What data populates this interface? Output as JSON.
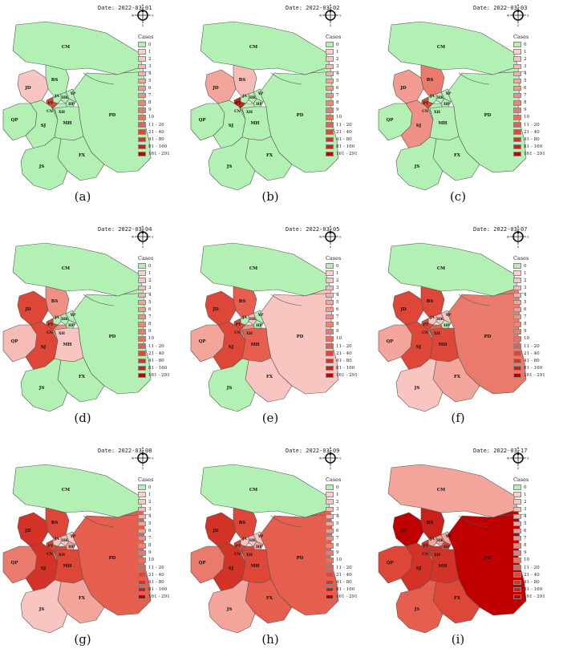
{
  "legend": {
    "title": "Cases",
    "items": [
      {
        "label": "0",
        "color": "#b2f0b4"
      },
      {
        "label": "1",
        "color": "#fbd0cd"
      },
      {
        "label": "2",
        "color": "#f8c5c0"
      },
      {
        "label": "3",
        "color": "#f7bbb5"
      },
      {
        "label": "4",
        "color": "#f5b0a9"
      },
      {
        "label": "5",
        "color": "#f3a59c"
      },
      {
        "label": "6",
        "color": "#f19b91"
      },
      {
        "label": "7",
        "color": "#ef9085"
      },
      {
        "label": "8",
        "color": "#ec8577"
      },
      {
        "label": "9",
        "color": "#ea7b6c"
      },
      {
        "label": "10",
        "color": "#e87060"
      },
      {
        "label": "11 - 20",
        "color": "#e55e4e"
      },
      {
        "label": "21 - 40",
        "color": "#de4638"
      },
      {
        "label": "41 - 80",
        "color": "#d33326"
      },
      {
        "label": "81 - 160",
        "color": "#c9201a"
      },
      {
        "label": "161 - 291",
        "color": "#c00000"
      }
    ]
  },
  "compass": {
    "n": "N",
    "s": "S",
    "e": "E",
    "w": "W"
  },
  "districts": [
    "CM",
    "BS",
    "JD",
    "YP",
    "HK",
    "JA",
    "PT",
    "HP",
    "CN",
    "XH",
    "QP",
    "SJ",
    "MH",
    "PD",
    "FX",
    "JS"
  ],
  "panels": [
    {
      "caption": "(a)",
      "date_label": "Date: 2022-03-01",
      "colors": {
        "CM": "#b2f0b4",
        "BS": "#b2f0b4",
        "JD": "#f8c5c0",
        "YP": "#b2f0b4",
        "HK": "#b2f0b4",
        "JA": "#b2f0b4",
        "PT": "#de4638",
        "HP": "#b2f0b4",
        "CN": "#b2f0b4",
        "XH": "#b2f0b4",
        "QP": "#b2f0b4",
        "SJ": "#b2f0b4",
        "MH": "#b2f0b4",
        "PD": "#b2f0b4",
        "FX": "#b2f0b4",
        "JS": "#b2f0b4"
      }
    },
    {
      "caption": "(b)",
      "date_label": "Date: 2022-03-02",
      "colors": {
        "CM": "#b2f0b4",
        "BS": "#f7bbb5",
        "JD": "#f3a59c",
        "YP": "#b2f0b4",
        "HK": "#b2f0b4",
        "JA": "#b2f0b4",
        "PT": "#c9201a",
        "HP": "#b2f0b4",
        "CN": "#b2f0b4",
        "XH": "#b2f0b4",
        "QP": "#b2f0b4",
        "SJ": "#b2f0b4",
        "MH": "#b2f0b4",
        "PD": "#b2f0b4",
        "FX": "#b2f0b4",
        "JS": "#b2f0b4"
      }
    },
    {
      "caption": "(c)",
      "date_label": "Date: 2022-03-03",
      "colors": {
        "CM": "#b2f0b4",
        "BS": "#ea7b6c",
        "JD": "#f19b91",
        "YP": "#b2f0b4",
        "HK": "#b2f0b4",
        "JA": "#b2f0b4",
        "PT": "#de4638",
        "HP": "#b2f0b4",
        "CN": "#b2f0b4",
        "XH": "#b2f0b4",
        "QP": "#b2f0b4",
        "SJ": "#ef9085",
        "MH": "#b2f0b4",
        "PD": "#b2f0b4",
        "FX": "#b2f0b4",
        "JS": "#b2f0b4"
      }
    },
    {
      "caption": "(d)",
      "date_label": "Date: 2022-03-04",
      "colors": {
        "CM": "#b2f0b4",
        "BS": "#ef9085",
        "JD": "#de4638",
        "YP": "#b2f0b4",
        "HK": "#b2f0b4",
        "JA": "#b2f0b4",
        "PT": "#de4638",
        "HP": "#b2f0b4",
        "CN": "#b2f0b4",
        "XH": "#ef9085",
        "QP": "#f7bbb5",
        "SJ": "#de4638",
        "MH": "#f8c5c0",
        "PD": "#b2f0b4",
        "FX": "#b2f0b4",
        "JS": "#b2f0b4"
      }
    },
    {
      "caption": "(e)",
      "date_label": "Date: 2022-03-05",
      "colors": {
        "CM": "#b2f0b4",
        "BS": "#e55e4e",
        "JD": "#de4638",
        "YP": "#b2f0b4",
        "HK": "#f8c5c0",
        "JA": "#b2f0b4",
        "PT": "#de4638",
        "HP": "#b2f0b4",
        "CN": "#b2f0b4",
        "XH": "#ef9085",
        "QP": "#f3a59c",
        "SJ": "#de4638",
        "MH": "#e55e4e",
        "PD": "#f8c5c0",
        "FX": "#f8c5c0",
        "JS": "#b2f0b4"
      }
    },
    {
      "caption": "(f)",
      "date_label": "Date: 2022-03-07",
      "colors": {
        "CM": "#b2f0b4",
        "BS": "#de4638",
        "JD": "#de4638",
        "YP": "#f8c5c0",
        "HK": "#f8c5c0",
        "JA": "#f8c5c0",
        "PT": "#de4638",
        "HP": "#b2f0b4",
        "CN": "#b2f0b4",
        "XH": "#e55e4e",
        "QP": "#f3a59c",
        "SJ": "#de4638",
        "MH": "#de4638",
        "PD": "#ea7b6c",
        "FX": "#f3a59c",
        "JS": "#f8c5c0"
      }
    },
    {
      "caption": "(g)",
      "date_label": "Date: 2022-03-08",
      "colors": {
        "CM": "#b2f0b4",
        "BS": "#de4638",
        "JD": "#d33326",
        "YP": "#f8c5c0",
        "HK": "#f8c5c0",
        "JA": "#f8c5c0",
        "PT": "#de4638",
        "HP": "#f3a59c",
        "CN": "#f3a59c",
        "XH": "#de4638",
        "QP": "#ea7b6c",
        "SJ": "#d33326",
        "MH": "#de4638",
        "PD": "#e55e4e",
        "FX": "#f3a59c",
        "JS": "#f8c5c0"
      }
    },
    {
      "caption": "(h)",
      "date_label": "Date: 2022-03-09",
      "colors": {
        "CM": "#b2f0b4",
        "BS": "#de4638",
        "JD": "#d33326",
        "YP": "#f8c5c0",
        "HK": "#f8c5c0",
        "JA": "#f8c5c0",
        "PT": "#de4638",
        "HP": "#f3a59c",
        "CN": "#f3a59c",
        "XH": "#de4638",
        "QP": "#ea7b6c",
        "SJ": "#d33326",
        "MH": "#de4638",
        "PD": "#e55e4e",
        "FX": "#e55e4e",
        "JS": "#f3a59c"
      }
    },
    {
      "caption": "(i)",
      "date_label": "Date: 2022-03-17",
      "colors": {
        "CM": "#f3a59c",
        "BS": "#c9201a",
        "JD": "#c00000",
        "YP": "#f3a59c",
        "HK": "#f3a59c",
        "JA": "#f3a59c",
        "PT": "#d33326",
        "HP": "#de4638",
        "CN": "#de4638",
        "XH": "#d33326",
        "QP": "#de4638",
        "SJ": "#d33326",
        "MH": "#d33326",
        "PD": "#c00000",
        "FX": "#de4638",
        "JS": "#e55e4e"
      }
    }
  ]
}
